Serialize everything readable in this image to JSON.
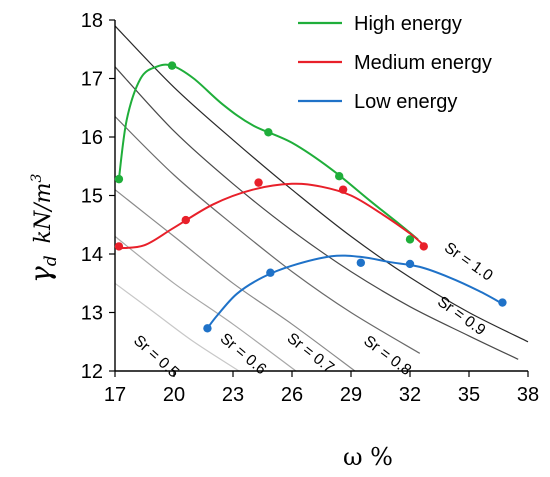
{
  "chart_data": {
    "type": "line",
    "title": "",
    "xlabel": "ω %",
    "ylabel_symbol": "γ",
    "ylabel_subscript": "d",
    "ylabel_units": "kN/m",
    "ylabel_units_exponent": "3",
    "xlim": [
      17,
      38
    ],
    "ylim": [
      12,
      18
    ],
    "x_ticks": [
      17,
      20,
      23,
      26,
      29,
      32,
      35,
      38
    ],
    "y_ticks": [
      12,
      13,
      14,
      15,
      16,
      17,
      18
    ],
    "grid": false,
    "legend_position": "top-right",
    "series": [
      {
        "name": "High energy",
        "color": "#1fae3a",
        "points": [
          [
            17.2,
            15.28
          ],
          [
            19.9,
            17.22
          ],
          [
            24.8,
            16.08
          ],
          [
            28.4,
            15.33
          ],
          [
            32.0,
            14.25
          ]
        ],
        "curve": [
          [
            17.2,
            15.28
          ],
          [
            17.6,
            16.3
          ],
          [
            18.3,
            17.0
          ],
          [
            19.1,
            17.2
          ],
          [
            19.9,
            17.22
          ],
          [
            21.0,
            17.0
          ],
          [
            22.5,
            16.55
          ],
          [
            24.0,
            16.2
          ],
          [
            26.0,
            15.9
          ],
          [
            28.0,
            15.45
          ],
          [
            30.0,
            14.9
          ],
          [
            31.5,
            14.5
          ],
          [
            32.4,
            14.25
          ]
        ]
      },
      {
        "name": "Medium energy",
        "color": "#e8202a",
        "points": [
          [
            17.2,
            14.13
          ],
          [
            20.6,
            14.58
          ],
          [
            24.3,
            15.22
          ],
          [
            28.6,
            15.1
          ],
          [
            32.7,
            14.13
          ]
        ],
        "curve": [
          [
            17.2,
            14.1
          ],
          [
            18.5,
            14.15
          ],
          [
            20.0,
            14.45
          ],
          [
            22.0,
            14.85
          ],
          [
            24.0,
            15.1
          ],
          [
            26.0,
            15.2
          ],
          [
            27.5,
            15.15
          ],
          [
            29.0,
            15.0
          ],
          [
            30.5,
            14.7
          ],
          [
            32.0,
            14.35
          ],
          [
            32.7,
            14.15
          ]
        ]
      },
      {
        "name": "Low energy",
        "color": "#1f72c8",
        "points": [
          [
            21.7,
            12.73
          ],
          [
            24.9,
            13.68
          ],
          [
            29.5,
            13.85
          ],
          [
            32.0,
            13.83
          ],
          [
            36.7,
            13.17
          ]
        ],
        "curve": [
          [
            21.7,
            12.73
          ],
          [
            22.2,
            12.95
          ],
          [
            23.2,
            13.32
          ],
          [
            24.5,
            13.6
          ],
          [
            26.0,
            13.8
          ],
          [
            28.0,
            13.96
          ],
          [
            29.5,
            13.95
          ],
          [
            31.0,
            13.86
          ],
          [
            32.5,
            13.78
          ],
          [
            34.0,
            13.6
          ],
          [
            35.5,
            13.37
          ],
          [
            36.7,
            13.15
          ]
        ]
      }
    ],
    "saturation_lines": [
      {
        "label": "Sr = 0.5",
        "points": [
          [
            17.0,
            13.5
          ],
          [
            19.0,
            13.0
          ],
          [
            21.0,
            12.5
          ],
          [
            23.3,
            12.0
          ]
        ],
        "label_at": [
          17.9,
          12.5
        ],
        "label_angle": 42
      },
      {
        "label": "Sr = 0.6",
        "points": [
          [
            17.0,
            14.3
          ],
          [
            20.0,
            13.5
          ],
          [
            23.0,
            12.8
          ],
          [
            26.2,
            12.0
          ]
        ],
        "label_at": [
          22.3,
          12.53
        ],
        "label_angle": 40
      },
      {
        "label": "Sr = 0.7",
        "points": [
          [
            17.0,
            15.1
          ],
          [
            20.0,
            14.3
          ],
          [
            23.0,
            13.5
          ],
          [
            26.0,
            12.8
          ],
          [
            29.2,
            12.0
          ]
        ],
        "label_at": [
          25.7,
          12.53
        ],
        "label_angle": 38
      },
      {
        "label": "Sr = 0.8",
        "points": [
          [
            17.0,
            16.35
          ],
          [
            20.0,
            15.35
          ],
          [
            23.0,
            14.5
          ],
          [
            26.0,
            13.7
          ],
          [
            29.0,
            13.0
          ],
          [
            32.5,
            12.3
          ]
        ],
        "label_at": [
          29.6,
          12.48
        ],
        "label_angle": 37
      },
      {
        "label": "Sr = 0.9",
        "points": [
          [
            17.0,
            17.2
          ],
          [
            20.0,
            16.1
          ],
          [
            23.0,
            15.2
          ],
          [
            26.0,
            14.4
          ],
          [
            29.0,
            13.7
          ],
          [
            32.0,
            13.1
          ],
          [
            35.0,
            12.6
          ],
          [
            37.5,
            12.2
          ]
        ],
        "label_at": [
          33.35,
          13.15
        ],
        "label_angle": 36
      },
      {
        "label": "Sr = 1.0",
        "points": [
          [
            17.0,
            17.9
          ],
          [
            20.0,
            16.85
          ],
          [
            23.0,
            15.95
          ],
          [
            26.0,
            15.1
          ],
          [
            29.0,
            14.3
          ],
          [
            32.0,
            13.6
          ],
          [
            35.0,
            13.0
          ],
          [
            38.0,
            12.5
          ]
        ],
        "label_at": [
          33.7,
          14.07
        ],
        "label_angle": 35
      }
    ]
  }
}
